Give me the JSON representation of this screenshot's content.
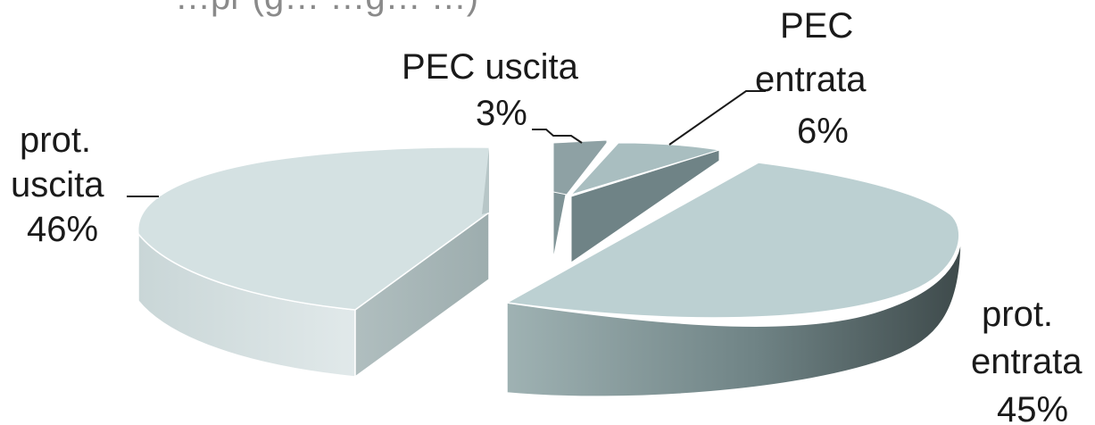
{
  "chart_data": {
    "type": "pie",
    "title_partial": "…pr (g…    …g…    …)",
    "slices": [
      {
        "name": "prot. entrata",
        "label_lines": [
          "prot.",
          "entrata",
          "45%"
        ],
        "value": 45,
        "color": "#b8ccce",
        "side": "#7d9194",
        "dark": "#4f5f61"
      },
      {
        "name": "prot. uscita",
        "label_lines": [
          "prot.",
          "uscita",
          "46%"
        ],
        "value": 46,
        "color": "#d3e0e1",
        "side": "#bccbcc",
        "dark": "#9aa9aa"
      },
      {
        "name": "PEC uscita",
        "label_lines": [
          "PEC uscita",
          "3%"
        ],
        "value": 3,
        "color": "#8ea1a4",
        "side": "#6e8184",
        "dark": "#566668"
      },
      {
        "name": "PEC entrata",
        "label_lines": [
          "PEC",
          "entrata",
          "6%"
        ],
        "value": 6,
        "color": "#a7bdbf",
        "side": "#73888b",
        "dark": "#5b6e71"
      }
    ],
    "legend": "none",
    "style": "3d exploded pie"
  }
}
